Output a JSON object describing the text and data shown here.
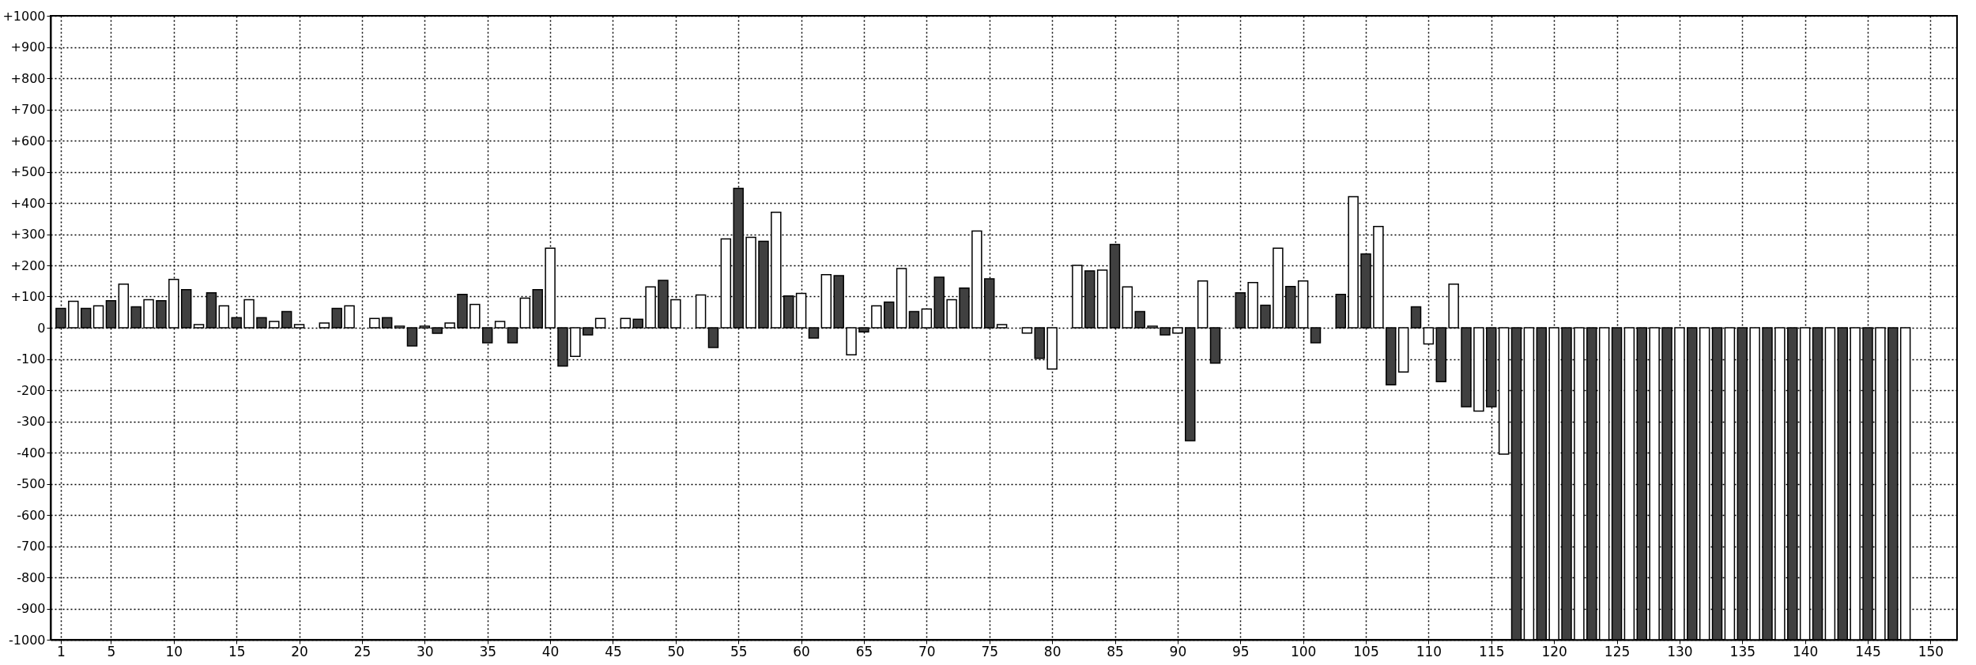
{
  "chart_data": {
    "type": "bar",
    "xlim": [
      0.5,
      151.8
    ],
    "xticks": [
      1,
      5,
      10,
      15,
      20,
      25,
      30,
      35,
      40,
      45,
      50,
      55,
      60,
      65,
      70,
      75,
      80,
      85,
      90,
      95,
      100,
      105,
      110,
      115,
      120,
      125,
      130,
      135,
      140,
      145,
      150
    ],
    "ylim": [
      -1000,
      1000
    ],
    "yticks": [
      {
        "value": 1000,
        "label": "+1000"
      },
      {
        "value": 900,
        "label": "+900"
      },
      {
        "value": 800,
        "label": "+800"
      },
      {
        "value": 700,
        "label": "+700"
      },
      {
        "value": 600,
        "label": "+600"
      },
      {
        "value": 500,
        "label": "+500"
      },
      {
        "value": 400,
        "label": "+400"
      },
      {
        "value": 300,
        "label": "+300"
      },
      {
        "value": 200,
        "label": "+200"
      },
      {
        "value": 100,
        "label": "+100"
      },
      0,
      -100,
      -200,
      -300,
      -400,
      -500,
      -600,
      -700,
      -800,
      -900,
      -1000
    ],
    "grid": true,
    "series": [
      {
        "color": "#404040",
        "x": [
          1,
          3,
          5,
          7,
          9,
          11,
          13,
          15,
          17,
          19,
          21,
          23,
          25,
          27,
          29,
          31,
          33,
          35,
          37,
          39,
          41,
          43,
          45,
          47,
          49,
          51,
          53,
          55,
          57,
          59,
          61,
          63,
          65,
          67,
          69,
          71,
          73,
          75,
          77,
          79,
          81,
          83,
          85,
          87,
          89,
          91,
          93,
          95,
          97,
          99,
          101,
          103,
          105,
          107,
          109,
          111,
          113,
          115,
          117,
          119,
          121,
          123,
          125,
          127,
          129,
          131,
          133,
          135,
          137,
          139,
          141,
          143,
          145,
          147
        ],
        "values": [
          62,
          62,
          87,
          67,
          87,
          122,
          112,
          32,
          32,
          52,
          null,
          62,
          null,
          32,
          -58,
          -18,
          107,
          -48,
          -48,
          122,
          -123,
          -23,
          null,
          27,
          152,
          null,
          -63,
          447,
          277,
          102,
          -33,
          167,
          -13,
          82,
          52,
          162,
          127,
          157,
          null,
          -98,
          null,
          182,
          267,
          52,
          -23,
          -362,
          -113,
          112,
          72,
          132,
          -48,
          107,
          237,
          -183,
          67,
          -173,
          -253,
          -253,
          -1000,
          -1000,
          -1000,
          -1000,
          -1000,
          -1000,
          -1000,
          -1000,
          -1000,
          -1000,
          -1000,
          -1000,
          -1000,
          -1000,
          -1000,
          -1000
        ]
      },
      {
        "color": "#ffffff",
        "x": [
          2,
          4,
          6,
          8,
          10,
          12,
          14,
          16,
          18,
          20,
          22,
          24,
          26,
          28,
          30,
          32,
          34,
          36,
          38,
          40,
          42,
          44,
          46,
          48,
          50,
          52,
          54,
          56,
          58,
          60,
          62,
          64,
          66,
          68,
          70,
          72,
          74,
          76,
          78,
          80,
          82,
          84,
          86,
          88,
          90,
          92,
          94,
          96,
          98,
          100,
          102,
          104,
          106,
          108,
          110,
          112,
          114,
          116,
          118,
          120,
          122,
          124,
          126,
          128,
          130,
          132,
          134,
          136,
          138,
          140,
          142,
          144,
          146,
          148
        ],
        "values": [
          85,
          70,
          140,
          90,
          155,
          10,
          70,
          90,
          20,
          10,
          15,
          70,
          30,
          5,
          5,
          15,
          75,
          20,
          95,
          255,
          -92,
          30,
          30,
          131,
          90,
          105,
          285,
          290,
          370,
          110,
          170,
          -87,
          70,
          190,
          60,
          90,
          310,
          10,
          -17,
          -132,
          200,
          185,
          131,
          5,
          -17,
          150,
          null,
          145,
          255,
          150,
          null,
          420,
          325,
          -142,
          -52,
          140,
          -267,
          -405,
          -1000,
          -1000,
          -1000,
          -1000,
          -1000,
          -1000,
          -1000,
          -1000,
          -1000,
          -1000,
          -1000,
          -1000,
          -1000,
          -1000,
          -1000,
          -1000
        ]
      }
    ]
  }
}
